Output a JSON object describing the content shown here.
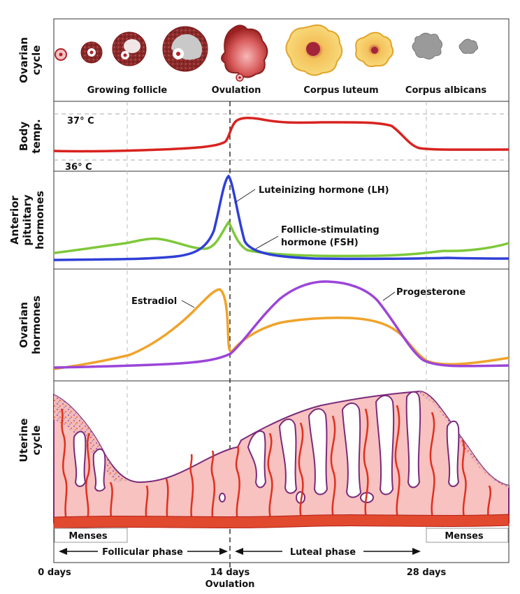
{
  "rows": {
    "ovarian_cycle": "Ovarian cycle",
    "body_temp": "Body temp.",
    "anterior_pituitary": "Anterior pituitary hormones",
    "ovarian_hormones": "Ovarian hormones",
    "uterine_cycle": "Uterine cycle"
  },
  "ovarian_stages": {
    "growing_follicle": "Growing follicle",
    "ovulation": "Ovulation",
    "corpus_luteum": "Corpus luteum",
    "corpus_albicans": "Corpus albicans"
  },
  "temperature": {
    "high": "37° C",
    "low": "36° C"
  },
  "hormones": {
    "lh": "Luteinizing hormone (LH)",
    "fsh_line1": "Follicle-stimulating",
    "fsh_line2": "hormone (FSH)",
    "estradiol": "Estradiol",
    "progesterone": "Progesterone"
  },
  "phases": {
    "menses_left": "Menses",
    "menses_right": "Menses",
    "follicular": "Follicular phase",
    "luteal": "Luteal phase"
  },
  "timeline": {
    "day0": "0 days",
    "day14": "14 days",
    "day14_sub": "Ovulation",
    "day28": "28 days"
  },
  "colors": {
    "temperature": "#d8231f",
    "lh": "#2f3fd6",
    "fsh": "#7ec83a",
    "estradiol": "#f0a32a",
    "progesterone": "#9b45d9",
    "endometrium": "#f7c2c0",
    "vessel": "#e0301e",
    "gland_outline": "#7a2a7a",
    "follicle": "#b2232a",
    "luteum": "#f7d36b"
  }
}
